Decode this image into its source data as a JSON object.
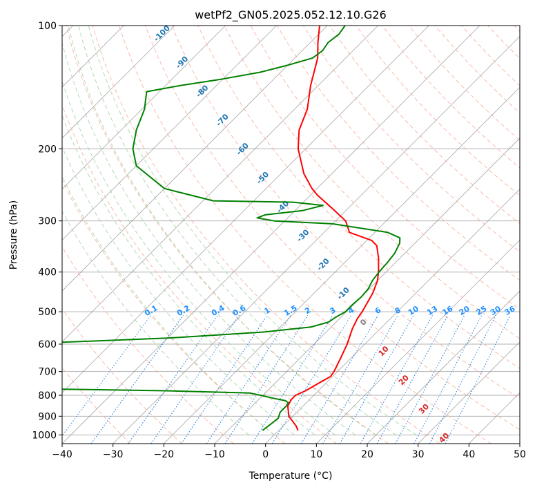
{
  "chart_data": {
    "type": "line",
    "subtype": "skew-T log-P diagram",
    "title": "wetPf2_GN05.2025.052.12.10.G26",
    "xlabel": "Temperature (°C)",
    "ylabel": "Pressure (hPa)",
    "xlim": [
      -40,
      50
    ],
    "ylim": [
      1050,
      100
    ],
    "y_scale": "log",
    "x_ticks": [
      -40,
      -30,
      -20,
      -10,
      0,
      10,
      20,
      30,
      40,
      50
    ],
    "y_ticks": [
      100,
      200,
      300,
      400,
      500,
      600,
      700,
      800,
      900,
      1000
    ],
    "grid": true,
    "series": [
      {
        "color": "#ff0000",
        "points": [
          [
            975,
            3.8
          ],
          [
            950,
            2.5
          ],
          [
            900,
            -0.8
          ],
          [
            850,
            -3.0
          ],
          [
            820,
            -3.6
          ],
          [
            800,
            -3.6
          ],
          [
            780,
            -2.5
          ],
          [
            750,
            -1.5
          ],
          [
            720,
            -0.4
          ],
          [
            700,
            -0.7
          ],
          [
            650,
            -2.0
          ],
          [
            600,
            -3.5
          ],
          [
            550,
            -5.5
          ],
          [
            520,
            -6.5
          ],
          [
            500,
            -6.9
          ],
          [
            450,
            -8.5
          ],
          [
            420,
            -10.0
          ],
          [
            400,
            -11.5
          ],
          [
            370,
            -14.2
          ],
          [
            345,
            -17.0
          ],
          [
            335,
            -19.0
          ],
          [
            320,
            -25.0
          ],
          [
            300,
            -28.0
          ],
          [
            280,
            -33.0
          ],
          [
            260,
            -38.5
          ],
          [
            250,
            -41.0
          ],
          [
            230,
            -45.5
          ],
          [
            200,
            -51.5
          ],
          [
            180,
            -55.0
          ],
          [
            160,
            -57.5
          ],
          [
            140,
            -61.5
          ],
          [
            120,
            -65.5
          ],
          [
            110,
            -68.5
          ],
          [
            100,
            -71.5
          ]
        ]
      },
      {
        "color": "#008000",
        "points": [
          [
            975,
            -3.2
          ],
          [
            950,
            -2.9
          ],
          [
            910,
            -2.5
          ],
          [
            880,
            -3.3
          ],
          [
            850,
            -3.3
          ],
          [
            835,
            -3.5
          ],
          [
            825,
            -4.5
          ],
          [
            815,
            -7.0
          ],
          [
            800,
            -10.5
          ],
          [
            790,
            -13.0
          ],
          [
            780,
            -30.0
          ],
          [
            770,
            -60.0
          ],
          [
            760,
            -68.0
          ],
          [
            750,
            -74.0
          ],
          [
            740,
            -80.0
          ],
          [
            730,
            -83.0
          ],
          [
            700,
            -86.3
          ],
          [
            690,
            -84.0
          ],
          [
            675,
            -80.0
          ],
          [
            660,
            -75.5
          ],
          [
            640,
            -74.0
          ],
          [
            625,
            -72.0
          ],
          [
            615,
            -68.0
          ],
          [
            595,
            -62.0
          ],
          [
            580,
            -40.0
          ],
          [
            560,
            -22.0
          ],
          [
            545,
            -14.0
          ],
          [
            530,
            -11.5
          ],
          [
            515,
            -11.0
          ],
          [
            500,
            -10.2
          ],
          [
            480,
            -10.2
          ],
          [
            460,
            -10.0
          ],
          [
            440,
            -10.2
          ],
          [
            420,
            -11.0
          ],
          [
            400,
            -11.4
          ],
          [
            380,
            -11.6
          ],
          [
            360,
            -12.0
          ],
          [
            340,
            -13.0
          ],
          [
            330,
            -14.0
          ],
          [
            320,
            -17.5
          ],
          [
            305,
            -30.0
          ],
          [
            300,
            -42.0
          ],
          [
            295,
            -46.0
          ],
          [
            290,
            -45.0
          ],
          [
            283,
            -38.5
          ],
          [
            275,
            -35.5
          ],
          [
            270,
            -42.0
          ],
          [
            268,
            -58.0
          ],
          [
            250,
            -70.0
          ],
          [
            220,
            -80.0
          ],
          [
            200,
            -84.0
          ],
          [
            180,
            -87.0
          ],
          [
            160,
            -89.5
          ],
          [
            150,
            -91.5
          ],
          [
            145,
            -92.5
          ],
          [
            140,
            -87.0
          ],
          [
            135,
            -80.0
          ],
          [
            130,
            -74.0
          ],
          [
            125,
            -70.0
          ],
          [
            120,
            -66.5
          ],
          [
            115,
            -66.0
          ],
          [
            110,
            -66.5
          ],
          [
            105,
            -66.0
          ],
          [
            100,
            -66.5
          ]
        ]
      }
    ],
    "dry_adiabat_labels": [
      "-100",
      "-90",
      "-80",
      "-70",
      "-60",
      "-50",
      "-40",
      "-30",
      "-20",
      "-10",
      "0",
      "10",
      "20",
      "30",
      "40"
    ],
    "mixing_ratio_labels": [
      "0.1",
      "0.2",
      "0.4",
      "0.6",
      "1",
      "1.5",
      "2",
      "3",
      "4",
      "6",
      "8",
      "10",
      "13",
      "16",
      "20",
      "25",
      "30",
      "36"
    ],
    "colors": {
      "temperature": "#ff0000",
      "dewpoint": "#008000",
      "isotherm": "#808080",
      "dry_adiabat": "#f7b29e",
      "moist_adiabat": "#9fcf9f",
      "mixing_ratio": "#3d8ee0",
      "label_blue": "#1f77b4",
      "label_red": "#d62728",
      "label_mixing": "#1e90ff"
    }
  }
}
